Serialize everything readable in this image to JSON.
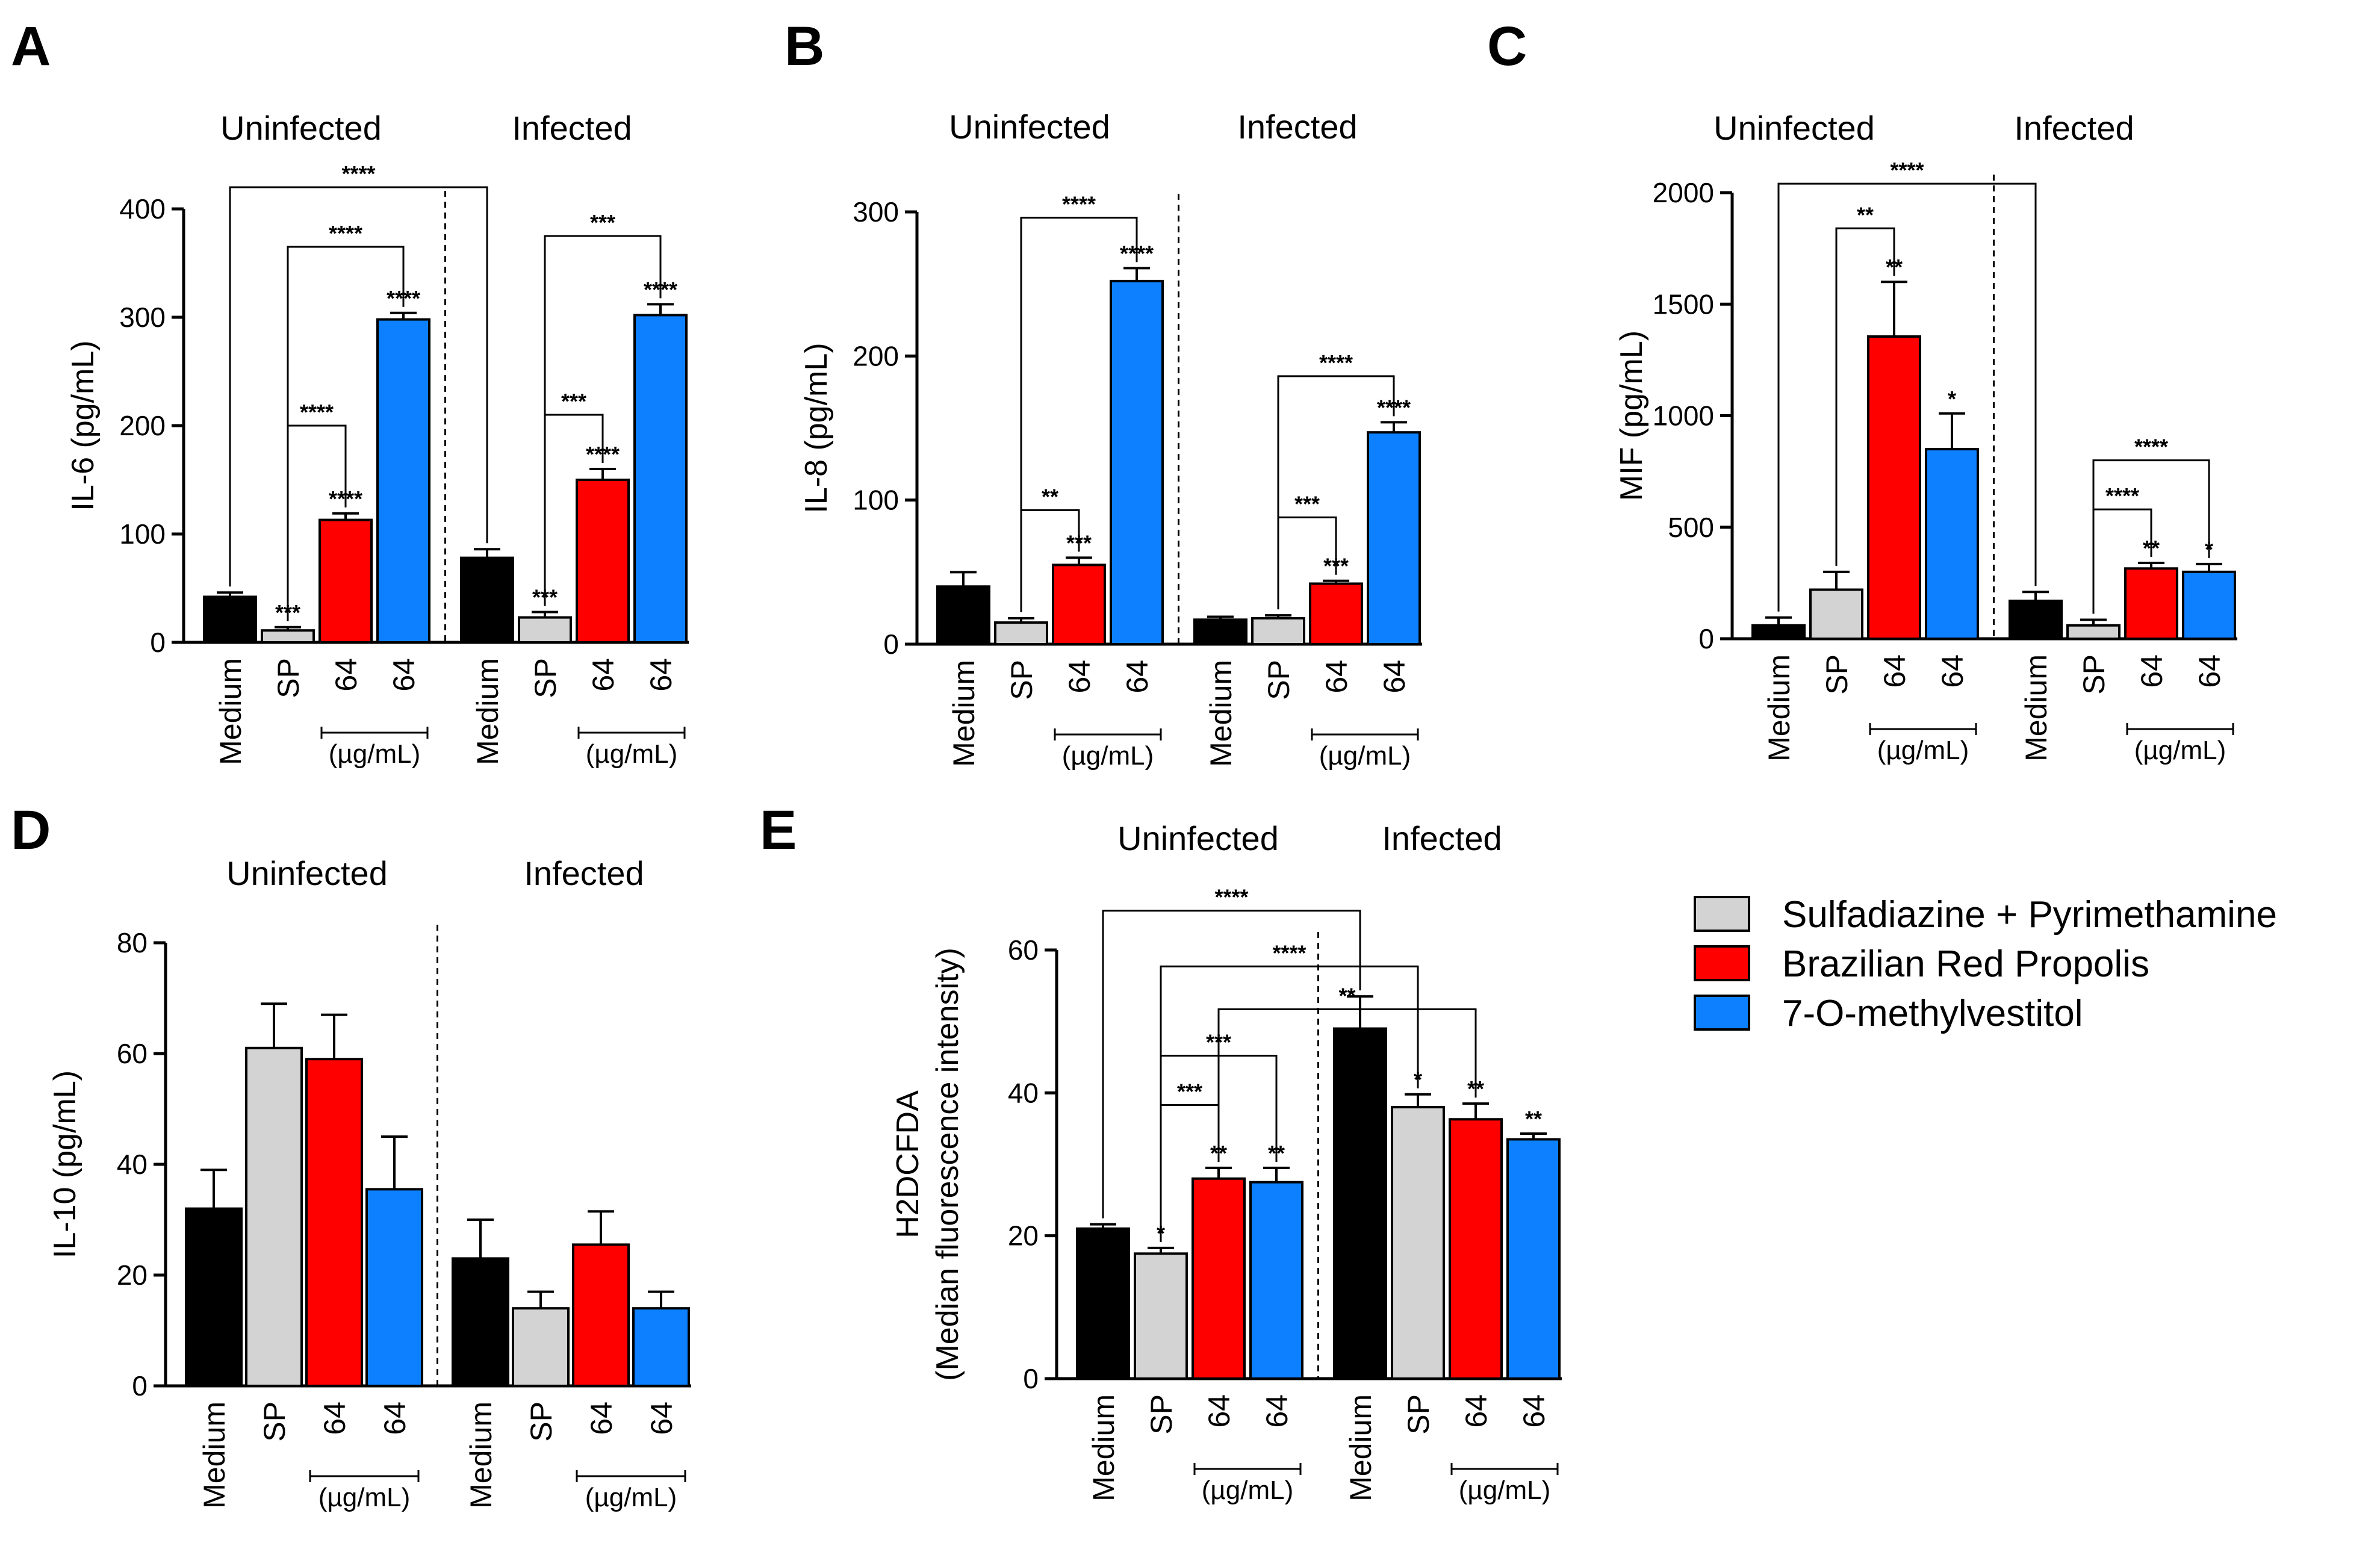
{
  "figure": {
    "groups": [
      "Uninfected",
      "Infected"
    ],
    "categories": [
      "Medium",
      "SP",
      "64",
      "64",
      "Medium",
      "SP",
      "64",
      "64"
    ],
    "concentration_unit": "(µg/mL)",
    "legend": [
      {
        "label": "Sulfadiazine + Pyrimethamine",
        "color": "#d3d3d3"
      },
      {
        "label": "Brazilian Red Propolis",
        "color": "#ff0000"
      },
      {
        "label": "7-O-methylvestitol",
        "color": "#0d80ff"
      }
    ],
    "bar_colors": [
      "#000000",
      "#d3d3d3",
      "#ff0000",
      "#0d80ff",
      "#000000",
      "#d3d3d3",
      "#ff0000",
      "#0d80ff"
    ]
  },
  "chart_data": [
    {
      "panel": "A",
      "type": "bar",
      "ylabel": "IL-6 (pg/mL)",
      "ylim": [
        0,
        400
      ],
      "yticks": [
        0,
        100,
        200,
        300,
        400
      ],
      "values": [
        42,
        11,
        113,
        298,
        78,
        23,
        150,
        302
      ],
      "errors": [
        4,
        3,
        6,
        6,
        8,
        5,
        10,
        10
      ],
      "bar_stars": [
        "",
        "***",
        "****",
        "****",
        "",
        "***",
        "****",
        "****"
      ],
      "brackets": [
        {
          "from": 0,
          "to": 4,
          "y": 420,
          "label": "****"
        },
        {
          "from": 1,
          "to": 3,
          "y": 365,
          "label": "****"
        },
        {
          "from": 1,
          "to": 2,
          "y": 200,
          "label": "****"
        },
        {
          "from": 5,
          "to": 7,
          "y": 375,
          "label": "***"
        },
        {
          "from": 5,
          "to": 6,
          "y": 210,
          "label": "***"
        }
      ]
    },
    {
      "panel": "B",
      "type": "bar",
      "ylabel": "IL-8 (pg/mL)",
      "ylim": [
        0,
        300
      ],
      "yticks": [
        0,
        100,
        200,
        300
      ],
      "values": [
        40,
        15,
        55,
        252,
        17,
        18,
        42,
        147
      ],
      "errors": [
        10,
        3,
        5,
        9,
        2,
        2,
        2,
        7
      ],
      "bar_stars": [
        "",
        "",
        "***",
        "****",
        "",
        "",
        "***",
        "****"
      ],
      "brackets": [
        {
          "from": 1,
          "to": 3,
          "y": 296,
          "label": "****"
        },
        {
          "from": 1,
          "to": 2,
          "y": 93,
          "label": "**"
        },
        {
          "from": 5,
          "to": 7,
          "y": 186,
          "label": "****"
        },
        {
          "from": 5,
          "to": 6,
          "y": 88,
          "label": "***"
        }
      ]
    },
    {
      "panel": "C",
      "type": "bar",
      "ylabel": "MIF (pg/mL)",
      "ylim": [
        0,
        2000
      ],
      "yticks": [
        0,
        500,
        1000,
        1500,
        2000
      ],
      "values": [
        60,
        220,
        1355,
        850,
        170,
        60,
        315,
        300
      ],
      "errors": [
        35,
        80,
        245,
        160,
        40,
        25,
        25,
        35
      ],
      "bar_stars": [
        "",
        "",
        "**",
        "*",
        "",
        "",
        "**",
        "*"
      ],
      "brackets": [
        {
          "from": 0,
          "to": 4,
          "y": 2040,
          "label": "****"
        },
        {
          "from": 1,
          "to": 2,
          "y": 1840,
          "label": "**"
        },
        {
          "from": 5,
          "to": 7,
          "y": 800,
          "label": "****"
        },
        {
          "from": 5,
          "to": 6,
          "y": 580,
          "label": "****"
        }
      ]
    },
    {
      "panel": "D",
      "type": "bar",
      "ylabel": "IL-10 (pg/mL)",
      "ylim": [
        0,
        80
      ],
      "yticks": [
        0,
        20,
        40,
        60,
        80
      ],
      "values": [
        32,
        61,
        59,
        35.5,
        23,
        14,
        25.5,
        14
      ],
      "errors": [
        7,
        8,
        8,
        9.5,
        7,
        3,
        6,
        3
      ],
      "bar_stars": [
        "",
        "",
        "",
        "",
        "",
        "",
        "",
        ""
      ],
      "brackets": []
    },
    {
      "panel": "E",
      "type": "bar",
      "ylabel": "H2DCFDA",
      "ylabel2": "(Median fluorescence intensity)",
      "ylim": [
        0,
        60
      ],
      "yticks": [
        0,
        20,
        40,
        60
      ],
      "values": [
        21,
        17.5,
        28,
        27.5,
        49,
        38,
        36.3,
        33.5
      ],
      "errors": [
        0.6,
        0.8,
        1.5,
        2.0,
        4.5,
        1.8,
        2.2,
        0.8
      ],
      "bar_stars": [
        "",
        "*",
        "**",
        "**",
        "",
        "*",
        "**",
        "**"
      ],
      "brackets": [
        {
          "from": 0,
          "to": 4,
          "y": 65.5,
          "label": "****"
        },
        {
          "from": 1,
          "to": 5,
          "y": 57.7,
          "label": "****"
        },
        {
          "from": 2,
          "to": 6,
          "y": 51.7,
          "label": "**"
        },
        {
          "from": 1,
          "to": 3,
          "y": 45.2,
          "label": "***"
        },
        {
          "from": 1,
          "to": 2,
          "y": 38.3,
          "label": "***"
        }
      ]
    }
  ]
}
